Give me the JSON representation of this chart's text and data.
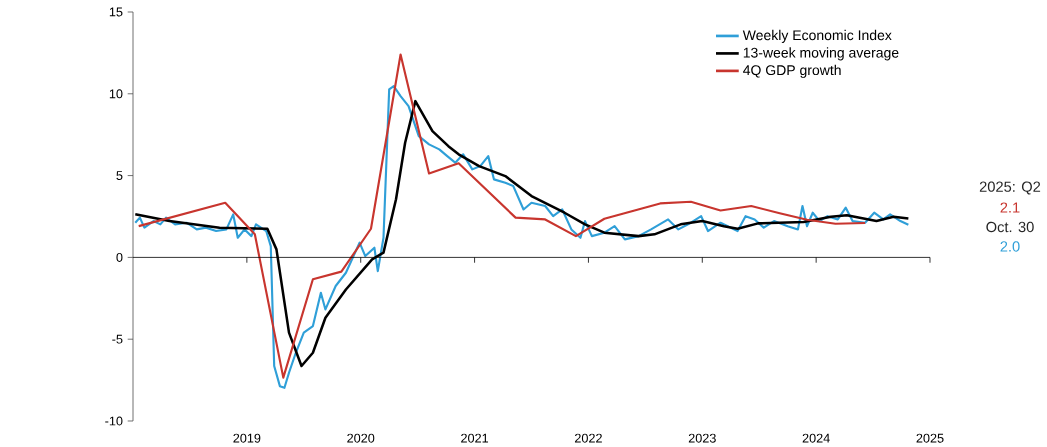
{
  "chart_data": {
    "type": "line",
    "xlim": [
      2018,
      2025
    ],
    "xticks": [
      2019,
      2020,
      2021,
      2022,
      2023,
      2024,
      2025
    ],
    "ylim": [
      -10,
      15
    ],
    "yticks": [
      -10,
      -5,
      0,
      5,
      10,
      15
    ],
    "legend": "top right",
    "annotations": [
      "2025: Q2",
      "2.1",
      "Oct. 30",
      "2.0"
    ],
    "series": [
      {
        "name": "Weekly Economic Index",
        "color": "#2f9fd8",
        "x": [
          2018.02,
          2018.06,
          2018.1,
          2018.18,
          2018.24,
          2018.29,
          2018.37,
          2018.47,
          2018.56,
          2018.64,
          2018.73,
          2018.82,
          2018.88,
          2018.92,
          2018.98,
          2019.04,
          2019.08,
          2019.17,
          2019.21,
          2019.24,
          2019.29,
          2019.33,
          2019.37,
          2019.43,
          2019.5,
          2019.58,
          2019.65,
          2019.69,
          2019.78,
          2019.87,
          2019.99,
          2020.04,
          2020.12,
          2020.15,
          2020.2,
          2020.25,
          2020.29,
          2020.35,
          2020.42,
          2020.51,
          2020.6,
          2020.69,
          2020.76,
          2020.83,
          2020.9,
          2020.98,
          2021.05,
          2021.12,
          2021.17,
          2021.27,
          2021.34,
          2021.43,
          2021.5,
          2021.62,
          2021.69,
          2021.77,
          2021.85,
          2021.93,
          2021.97,
          2022.03,
          2022.14,
          2022.23,
          2022.32,
          2022.44,
          2022.55,
          2022.7,
          2022.79,
          2022.9,
          2022.99,
          2023.05,
          2023.16,
          2023.31,
          2023.38,
          2023.46,
          2023.54,
          2023.63,
          2023.75,
          2023.84,
          2023.88,
          2023.92,
          2023.97,
          2024.03,
          2024.1,
          2024.19,
          2024.26,
          2024.32,
          2024.43,
          2024.51,
          2024.59,
          2024.65,
          2024.74,
          2024.81
        ],
        "values": [
          2.12,
          2.43,
          1.82,
          2.22,
          2.02,
          2.43,
          2.02,
          2.12,
          1.71,
          1.82,
          1.61,
          1.71,
          2.63,
          1.2,
          1.71,
          1.3,
          2.02,
          1.61,
          0.69,
          -6.64,
          -7.87,
          -7.97,
          -7.05,
          -5.83,
          -4.6,
          -4.2,
          -2.16,
          -3.18,
          -1.75,
          -0.94,
          0.9,
          0.08,
          0.59,
          -0.84,
          1.2,
          10.27,
          10.47,
          9.86,
          9.25,
          7.41,
          6.91,
          6.6,
          6.19,
          5.79,
          6.3,
          5.38,
          5.58,
          6.19,
          4.77,
          4.56,
          4.36,
          2.93,
          3.34,
          3.14,
          2.52,
          2.93,
          1.71,
          1.2,
          2.22,
          1.3,
          1.51,
          1.91,
          1.1,
          1.3,
          1.71,
          2.32,
          1.71,
          2.12,
          2.52,
          1.61,
          2.12,
          1.61,
          2.52,
          2.32,
          1.82,
          2.22,
          1.91,
          1.71,
          3.14,
          1.91,
          2.73,
          2.22,
          2.52,
          2.32,
          3.04,
          2.22,
          2.12,
          2.73,
          2.32,
          2.63,
          2.22,
          2.0
        ]
      },
      {
        "name": "13-week moving average",
        "color": "#000000",
        "x": [
          2018.02,
          2018.32,
          2018.76,
          2019.18,
          2019.26,
          2019.37,
          2019.48,
          2019.58,
          2019.69,
          2019.87,
          2020.1,
          2020.2,
          2020.31,
          2020.39,
          2020.48,
          2020.63,
          2020.77,
          2020.86,
          2021.04,
          2021.27,
          2021.5,
          2021.79,
          2021.97,
          2022.14,
          2022.44,
          2022.58,
          2022.81,
          2023.0,
          2023.19,
          2023.31,
          2023.49,
          2023.89,
          2024.13,
          2024.27,
          2024.53,
          2024.68,
          2024.81
        ],
        "values": [
          2.63,
          2.22,
          1.81,
          1.75,
          0.49,
          -4.6,
          -6.64,
          -5.83,
          -3.69,
          -1.96,
          -0.12,
          0.29,
          3.55,
          7.01,
          9.55,
          7.72,
          6.8,
          6.3,
          5.58,
          4.97,
          3.75,
          2.73,
          2.02,
          1.51,
          1.3,
          1.41,
          2.02,
          2.22,
          1.91,
          1.75,
          2.08,
          2.16,
          2.49,
          2.57,
          2.22,
          2.49,
          2.38
        ]
      },
      {
        "name": "4Q GDP growth",
        "color": "#c8352e",
        "x": [
          2018.05,
          2018.81,
          2019.07,
          2019.32,
          2019.58,
          2019.83,
          2020.09,
          2020.35,
          2020.6,
          2020.86,
          2021.36,
          2021.62,
          2021.89,
          2022.14,
          2022.63,
          2022.9,
          2023.16,
          2023.43,
          2023.68,
          2023.92,
          2024.17,
          2024.43
        ],
        "values": [
          1.91,
          3.34,
          1.41,
          -7.35,
          -1.34,
          -0.87,
          1.75,
          12.4,
          5.13,
          5.75,
          2.43,
          2.32,
          1.3,
          2.36,
          3.3,
          3.4,
          2.87,
          3.14,
          2.7,
          2.3,
          2.06,
          2.1
        ]
      }
    ]
  }
}
